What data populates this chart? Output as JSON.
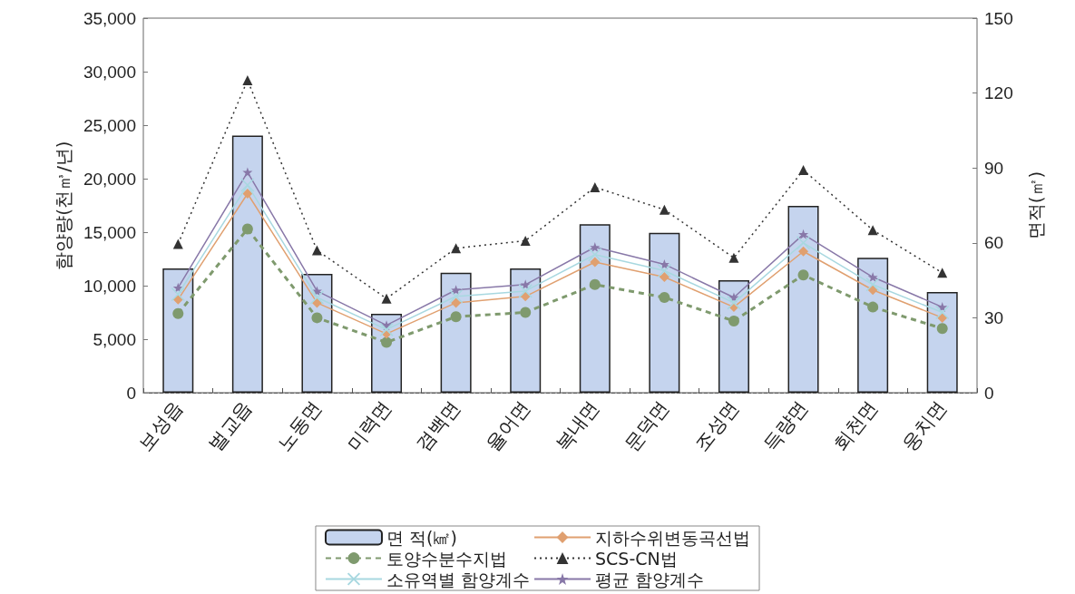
{
  "chart_data": {
    "type": "line",
    "ylabel": "함양량(천㎥/년)",
    "y2label": "면적(㎡)",
    "categories": [
      "보성읍",
      "벌교읍",
      "노동면",
      "미력면",
      "겸백면",
      "율어면",
      "복내면",
      "문덕면",
      "조성면",
      "득량면",
      "회천면",
      "웅치면"
    ],
    "ylim": [
      0,
      35000
    ],
    "yticks": [
      0,
      {
        "value": 5000,
        "label": "5,000"
      },
      {
        "value": 10000,
        "label": "10,000"
      },
      {
        "value": 15000,
        "label": "15,000"
      },
      {
        "value": 20000,
        "label": "20,000"
      },
      {
        "value": 25000,
        "label": "25,000"
      },
      {
        "value": 30000,
        "label": "30,000"
      },
      {
        "value": 35000,
        "label": "35,000"
      }
    ],
    "y2lim": [
      0,
      150
    ],
    "y2ticks": [
      0,
      30,
      60,
      90,
      120,
      150
    ],
    "grid": false,
    "legend": "bottom",
    "series": [
      {
        "name": "면 적(㎢)",
        "type": "bar",
        "axis": "y2",
        "color": "#c5d4ee",
        "values": [
          49.8,
          103,
          47.6,
          31.6,
          48,
          49.8,
          67.5,
          64,
          45,
          74.8,
          54,
          40.3
        ]
      },
      {
        "name": "토양수분수지법",
        "color": "#7f9a6e",
        "marker": "circle",
        "line_style": "dashed",
        "values": [
          7400,
          15300,
          7000,
          4700,
          7100,
          7500,
          10100,
          8900,
          6700,
          11000,
          8000,
          6000
        ]
      },
      {
        "name": "소유역별 함양계수",
        "color": "#a8d8e0",
        "marker": "cross",
        "line_style": "solid",
        "values": [
          9200,
          19400,
          8900,
          5900,
          9000,
          9500,
          12900,
          11400,
          8400,
          14000,
          10100,
          7500
        ]
      },
      {
        "name": "지하수위변동곡선법",
        "color": "#e0a070",
        "marker": "diamond",
        "line_style": "solid",
        "values": [
          8700,
          18600,
          8400,
          5500,
          8400,
          9000,
          12200,
          10800,
          8000,
          13200,
          9600,
          7000
        ]
      },
      {
        "name": "SCS-CN법",
        "color": "#333333",
        "marker": "triangle",
        "line_style": "dotted",
        "values": [
          13900,
          29200,
          13300,
          8800,
          13500,
          14200,
          19200,
          17100,
          12600,
          20800,
          15200,
          11200
        ]
      },
      {
        "name": "평균 함양계수",
        "color": "#8878a8",
        "marker": "star",
        "line_style": "solid",
        "values": [
          9800,
          20600,
          9500,
          6300,
          9600,
          10100,
          13600,
          12000,
          8900,
          14800,
          10800,
          8000
        ]
      }
    ]
  }
}
